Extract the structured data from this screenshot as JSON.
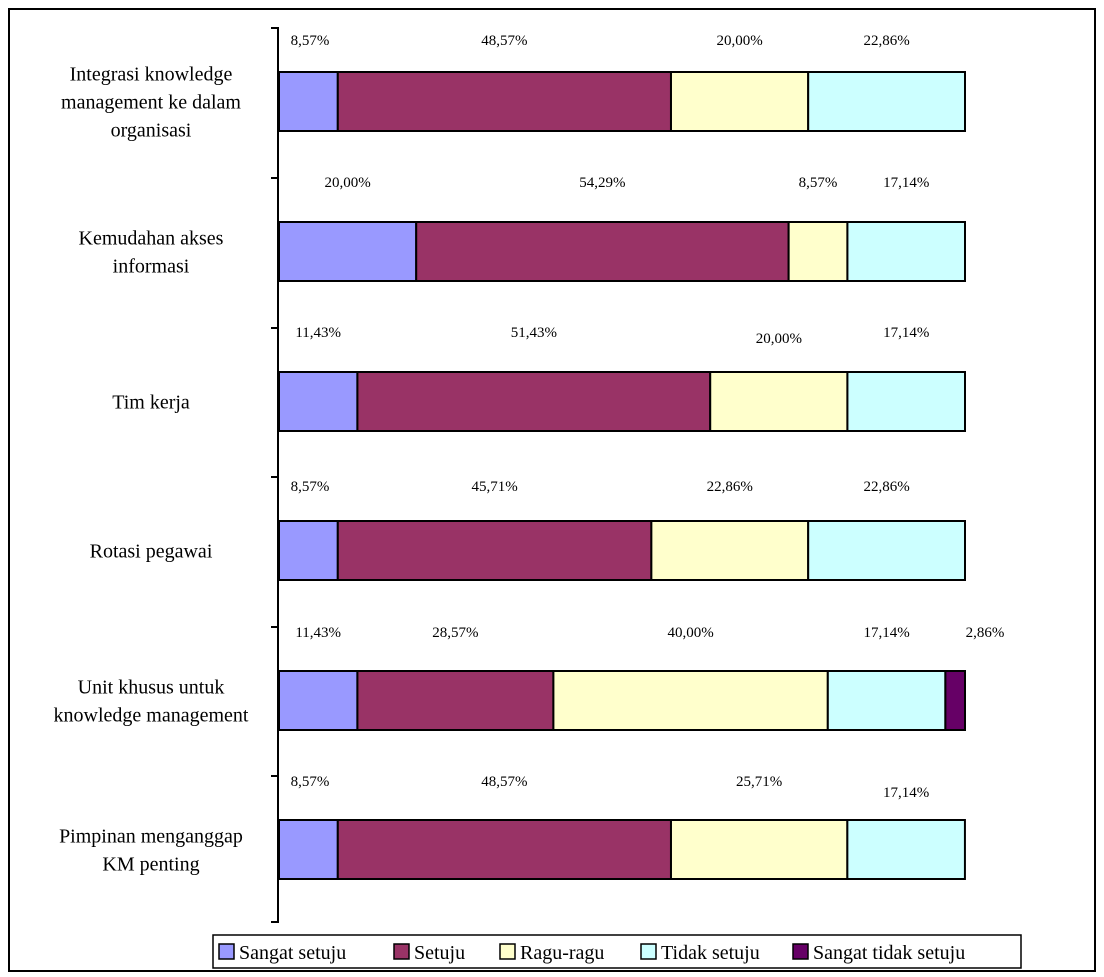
{
  "chart_data": {
    "type": "bar",
    "stacked": true,
    "orientation": "horizontal",
    "categories": [
      [
        "Integrasi knowledge",
        "management ke dalam",
        "organisasi"
      ],
      [
        "Kemudahan akses",
        "informasi"
      ],
      [
        "Tim kerja"
      ],
      [
        "Rotasi pegawai"
      ],
      [
        "Unit khusus untuk",
        "knowledge management"
      ],
      [
        "Pimpinan menganggap",
        "KM penting"
      ]
    ],
    "series": [
      {
        "name": "Sangat setuju",
        "color": "#9999ff",
        "values": [
          8.57,
          20.0,
          11.43,
          8.57,
          11.43,
          8.57
        ],
        "labels": [
          "8,57%",
          "20,00%",
          "11,43%",
          "8,57%",
          "11,43%",
          "8,57%"
        ]
      },
      {
        "name": "Setuju",
        "color": "#993366",
        "values": [
          48.57,
          54.29,
          51.43,
          45.71,
          28.57,
          48.57
        ],
        "labels": [
          "48,57%",
          "54,29%",
          "51,43%",
          "45,71%",
          "28,57%",
          "48,57%"
        ]
      },
      {
        "name": "Ragu-ragu",
        "color": "#ffffcc",
        "values": [
          20.0,
          8.57,
          20.0,
          22.86,
          40.0,
          25.71
        ],
        "labels": [
          "20,00%",
          "8,57%",
          "20,00%",
          "22,86%",
          "40,00%",
          "25,71%"
        ]
      },
      {
        "name": "Tidak setuju",
        "color": "#ccffff",
        "values": [
          22.86,
          17.14,
          17.14,
          22.86,
          17.14,
          17.14
        ],
        "labels": [
          "22,86%",
          "17,14%",
          "17,14%",
          "22,86%",
          "17,14%",
          "17,14%"
        ]
      },
      {
        "name": "Sangat tidak setuju",
        "color": "#660066",
        "values": [
          0,
          0,
          0,
          0,
          2.86,
          0
        ],
        "labels": [
          "",
          "",
          "",
          "",
          "2,86%",
          ""
        ]
      }
    ],
    "xlim": [
      0,
      100
    ],
    "grid": false,
    "legend_position": "bottom"
  }
}
